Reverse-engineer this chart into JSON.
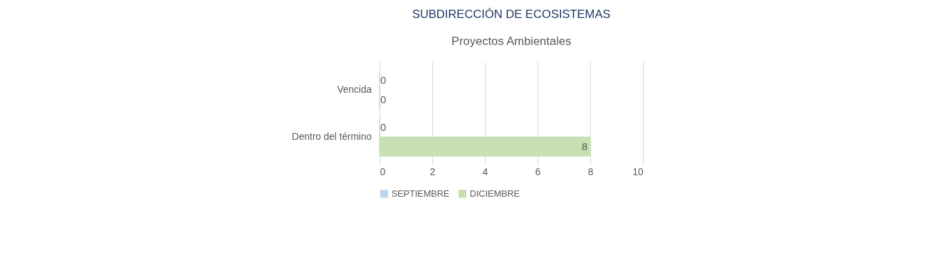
{
  "chart_data": {
    "type": "bar",
    "orientation": "horizontal",
    "title": "SUBDIRECCIÓN DE ECOSISTEMAS",
    "subtitle": "Proyectos Ambientales",
    "categories": [
      "Vencida",
      "Dentro del término"
    ],
    "series": [
      {
        "name": "SEPTIEMBRE",
        "color": "#bdd7ee",
        "values": [
          0,
          0
        ]
      },
      {
        "name": "DICIEMBRE",
        "color": "#c6e0b4",
        "values": [
          0,
          8
        ]
      }
    ],
    "xlim": [
      0,
      10
    ],
    "xticks": [
      0,
      2,
      4,
      6,
      8,
      10
    ],
    "grid": "x",
    "legend": "bottom",
    "data_labels": true
  }
}
